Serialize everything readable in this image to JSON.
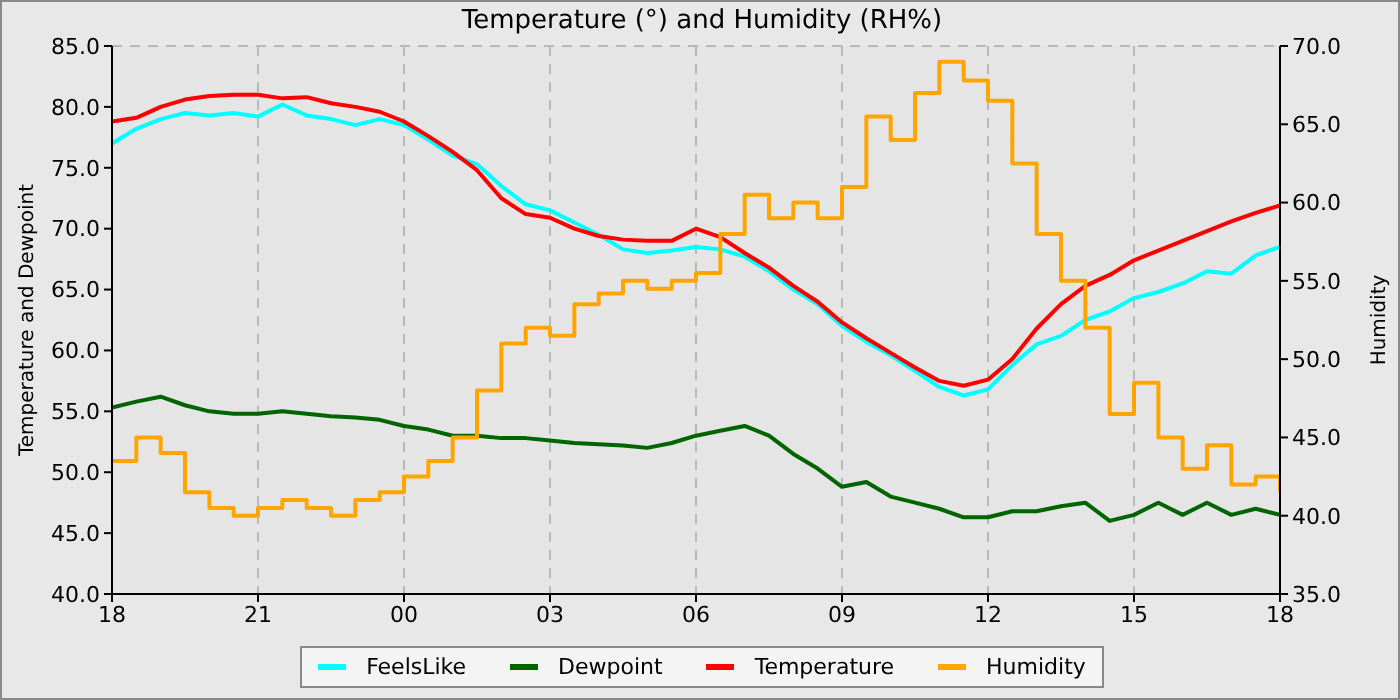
{
  "chart_data": {
    "type": "line",
    "title": "Temperature (°) and Humidity (RH%)",
    "ylabel": "Temperature and Dewpoint",
    "y2label": "Humidity",
    "x": [
      18,
      18.5,
      19,
      19.5,
      20,
      20.5,
      21,
      21.5,
      22,
      22.5,
      23,
      23.5,
      24,
      24.5,
      25,
      25.5,
      26,
      26.5,
      27,
      27.5,
      28,
      28.5,
      29,
      29.5,
      30,
      30.5,
      31,
      31.5,
      32,
      32.5,
      33,
      33.5,
      34,
      34.5,
      35,
      35.5,
      36,
      36.5,
      37,
      37.5,
      38,
      38.5,
      39,
      39.5,
      40,
      40.5,
      41,
      41.5,
      42
    ],
    "xlim": [
      18,
      42
    ],
    "xticks": [
      {
        "value": 18,
        "label": "18"
      },
      {
        "value": 21,
        "label": "21"
      },
      {
        "value": 24,
        "label": "00"
      },
      {
        "value": 27,
        "label": "03"
      },
      {
        "value": 30,
        "label": "06"
      },
      {
        "value": 33,
        "label": "09"
      },
      {
        "value": 36,
        "label": "12"
      },
      {
        "value": 39,
        "label": "15"
      },
      {
        "value": 42,
        "label": "18"
      }
    ],
    "ylim": [
      40,
      85
    ],
    "yticks": [
      {
        "value": 40,
        "label": "40.0"
      },
      {
        "value": 45,
        "label": "45.0"
      },
      {
        "value": 50,
        "label": "50.0"
      },
      {
        "value": 55,
        "label": "55.0"
      },
      {
        "value": 60,
        "label": "60.0"
      },
      {
        "value": 65,
        "label": "65.0"
      },
      {
        "value": 70,
        "label": "70.0"
      },
      {
        "value": 75,
        "label": "75.0"
      },
      {
        "value": 80,
        "label": "80.0"
      },
      {
        "value": 85,
        "label": "85.0"
      }
    ],
    "y2lim": [
      35,
      70
    ],
    "y2ticks": [
      {
        "value": 35,
        "label": "35.0"
      },
      {
        "value": 40,
        "label": "40.0"
      },
      {
        "value": 45,
        "label": "45.0"
      },
      {
        "value": 50,
        "label": "50.0"
      },
      {
        "value": 55,
        "label": "55.0"
      },
      {
        "value": 60,
        "label": "60.0"
      },
      {
        "value": 65,
        "label": "65.0"
      },
      {
        "value": 70,
        "label": "70.0"
      }
    ],
    "grid": true,
    "legend": "bottom",
    "marker": "none",
    "series": [
      {
        "name": "FeelsLike",
        "color": "#00ffff",
        "values": [
          77.0,
          78.2,
          79.0,
          79.5,
          79.3,
          79.5,
          79.2,
          80.2,
          79.3,
          79.0,
          78.5,
          79.0,
          78.5,
          77.3,
          76.0,
          75.3,
          73.5,
          72.0,
          71.5,
          70.5,
          69.5,
          68.3,
          68.0,
          68.2,
          68.5,
          68.3,
          67.7,
          66.5,
          65.0,
          63.8,
          62.0,
          60.7,
          59.6,
          58.3,
          57.0,
          56.3,
          56.8,
          58.8,
          60.5,
          61.2,
          62.5,
          63.2,
          64.3,
          64.8,
          65.5,
          66.5,
          66.3,
          67.8,
          68.5
        ]
      },
      {
        "name": "Dewpoint",
        "color": "#006400",
        "values": [
          55.3,
          55.8,
          56.2,
          55.5,
          55.0,
          54.8,
          54.8,
          55.0,
          54.8,
          54.6,
          54.5,
          54.3,
          53.8,
          53.5,
          53.0,
          53.0,
          52.8,
          52.8,
          52.6,
          52.4,
          52.3,
          52.2,
          52.0,
          52.4,
          53.0,
          53.4,
          53.8,
          53.0,
          51.5,
          50.3,
          48.8,
          49.2,
          48.0,
          47.5,
          47.0,
          46.3,
          46.3,
          46.8,
          46.8,
          47.2,
          47.5,
          46.0,
          46.5,
          47.5,
          46.5,
          47.5,
          46.5,
          47.0,
          46.5
        ]
      },
      {
        "name": "Temperature",
        "color": "#ff0000",
        "values": [
          78.8,
          79.1,
          80.0,
          80.6,
          80.9,
          81.0,
          81.0,
          80.7,
          80.8,
          80.3,
          80.0,
          79.6,
          78.8,
          77.6,
          76.3,
          74.8,
          72.5,
          71.2,
          70.9,
          70.0,
          69.4,
          69.1,
          69.0,
          69.0,
          70.0,
          69.3,
          68.0,
          66.8,
          65.3,
          64.0,
          62.3,
          61.0,
          59.8,
          58.6,
          57.5,
          57.1,
          57.6,
          59.3,
          61.8,
          63.8,
          65.3,
          66.2,
          67.4,
          68.2,
          69.0,
          69.8,
          70.6,
          71.3,
          71.9
        ]
      },
      {
        "name": "Humidity",
        "color": "#ffa500",
        "axis": "y2",
        "type": "step",
        "values": [
          43.5,
          45.0,
          44.0,
          41.5,
          40.5,
          40.0,
          40.5,
          41.0,
          40.5,
          40.0,
          41.0,
          41.5,
          42.5,
          43.5,
          45.0,
          48.0,
          51.0,
          52.0,
          51.5,
          53.5,
          54.2,
          55.0,
          54.5,
          55.0,
          55.5,
          58.0,
          60.5,
          59.0,
          60.0,
          59.0,
          61.0,
          65.5,
          64.0,
          67.0,
          69.0,
          67.8,
          66.5,
          62.5,
          58.0,
          55.0,
          52.0,
          46.5,
          48.5,
          45.0,
          43.0,
          44.5,
          42.0,
          42.5,
          41.5
        ]
      }
    ]
  }
}
